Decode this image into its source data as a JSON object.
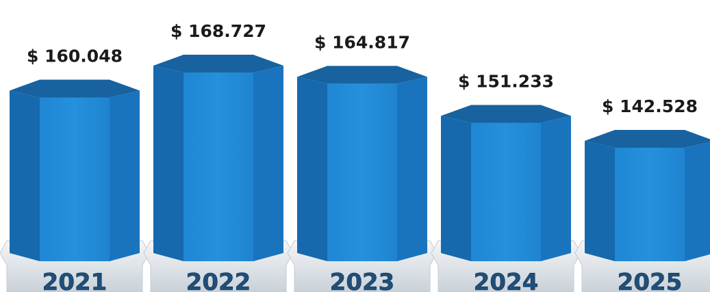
{
  "chart_data": {
    "type": "bar",
    "categories": [
      "2021",
      "2022",
      "2023",
      "2024",
      "2025"
    ],
    "values": [
      160048,
      168727,
      164817,
      151233,
      142528
    ],
    "value_labels": [
      "$ 160.048",
      "$ 168.727",
      "$ 164.817",
      "$ 151.233",
      "$ 142.528"
    ],
    "title": "",
    "xlabel": "",
    "ylabel": "",
    "grid": false,
    "legend": "none",
    "colors": {
      "bar_front": "#1f87d4",
      "bar_side_left": "#1669ad",
      "bar_side_right": "#1a74bd",
      "bar_top": "#17629f",
      "base": "#e3e8ec",
      "base_shadow": "#c3cbd2",
      "year_text": "#1f4f7a",
      "value_text": "#1a1a1a"
    }
  }
}
